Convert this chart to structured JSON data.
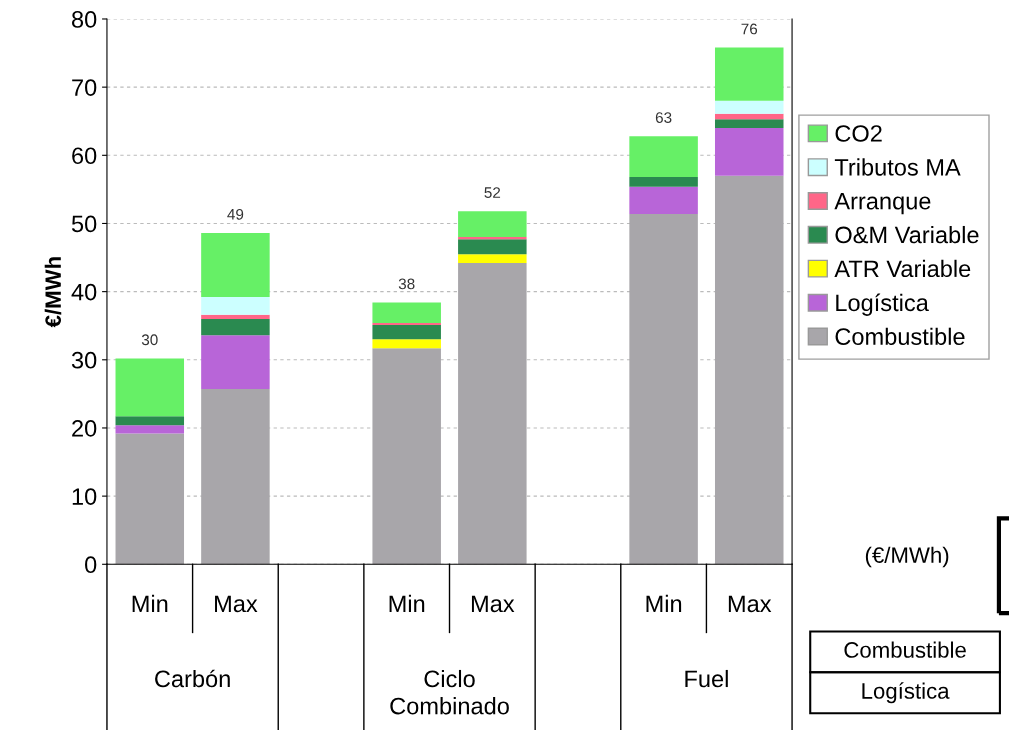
{
  "chart_data": {
    "type": "bar",
    "stacked": true,
    "ylabel": "€/MWh",
    "categories": [
      "Min",
      "Max",
      null,
      "Min",
      "Max",
      null,
      "Min",
      "Max"
    ],
    "series": [
      {
        "name": "Combustible",
        "color": "#a8a6aa",
        "values": [
          19.2,
          25.7,
          null,
          31.7,
          44.2,
          null,
          51.4,
          57.0
        ]
      },
      {
        "name": "Logística",
        "color": "#b865d8",
        "values": [
          1.2,
          7.9,
          null,
          0,
          0,
          null,
          4.0,
          7.0
        ]
      },
      {
        "name": "ATR Variable",
        "color": "#ffff00",
        "values": [
          0,
          0,
          null,
          1.3,
          1.3,
          null,
          0,
          0
        ]
      },
      {
        "name": "O&M Variable",
        "color": "#2a8a50",
        "values": [
          1.3,
          2.4,
          null,
          2.1,
          2.2,
          null,
          1.4,
          1.3
        ]
      },
      {
        "name": "Arranque",
        "color": "#ff6688",
        "values": [
          0,
          0.6,
          null,
          0.3,
          0.3,
          null,
          0,
          0.8
        ]
      },
      {
        "name": "Tributos MA",
        "color": "#ccffff",
        "values": [
          0,
          2.6,
          null,
          0,
          0,
          null,
          0,
          1.9
        ]
      },
      {
        "name": "CO2",
        "color": "#66f066",
        "values": [
          8.5,
          9.4,
          null,
          3.0,
          3.8,
          null,
          6.0,
          7.8
        ]
      }
    ],
    "totals": [
      "30",
      "49",
      null,
      "38",
      "52",
      null,
      "63",
      "76"
    ],
    "ylim": [
      0,
      80
    ],
    "yticks": [
      0,
      10,
      20,
      30,
      40,
      50,
      60,
      70,
      80
    ],
    "grid": "y",
    "legend": "right",
    "annotations": [
      "Carbón",
      "Ciclo Combinado",
      "Fuel",
      "(€/MWh)",
      "Combustible",
      "Logística"
    ]
  }
}
